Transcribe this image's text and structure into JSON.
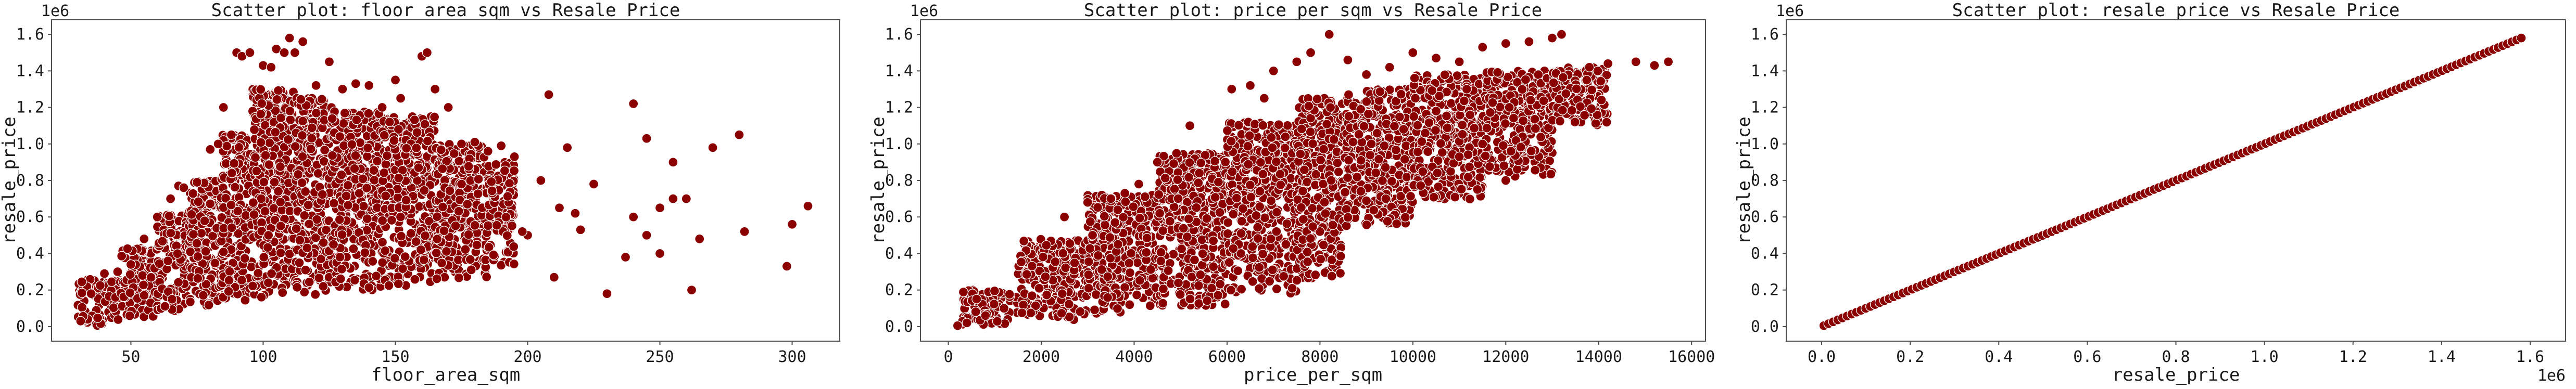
{
  "colors": {
    "marker_fill": "#8b0000",
    "marker_edge": "#ffffff",
    "frame": "#4d4d4d",
    "text": "#1a1a1a"
  },
  "chart_data": [
    {
      "type": "scatter",
      "title": "Scatter plot: floor_area_sqm vs Resale Price",
      "xlabel": "floor_area_sqm",
      "ylabel": "resale_price",
      "y_offset_label": "1e6",
      "x_offset_label": "",
      "xlim": [
        20,
        318
      ],
      "ylim": [
        -80000,
        1680000
      ],
      "xticks": [
        50,
        100,
        150,
        200,
        250,
        300
      ],
      "xtick_labels": [
        "50",
        "100",
        "150",
        "200",
        "250",
        "300"
      ],
      "yticks": [
        0,
        200000,
        400000,
        600000,
        800000,
        1000000,
        1200000,
        1400000,
        1600000
      ],
      "ytick_labels": [
        "0.0",
        "0.2",
        "0.4",
        "0.6",
        "0.8",
        "1.0",
        "1.2",
        "1.4",
        "1.6"
      ],
      "grid": false,
      "points": [
        [
          31,
          30000
        ],
        [
          35,
          180000
        ],
        [
          40,
          290000
        ],
        [
          45,
          300000
        ],
        [
          50,
          340000
        ],
        [
          55,
          480000
        ],
        [
          60,
          600000
        ],
        [
          65,
          700000
        ],
        [
          68,
          770000
        ],
        [
          70,
          760000
        ],
        [
          75,
          790000
        ],
        [
          80,
          970000
        ],
        [
          83,
          1000000
        ],
        [
          85,
          1200000
        ],
        [
          88,
          1050000
        ],
        [
          90,
          1500000
        ],
        [
          92,
          1480000
        ],
        [
          95,
          1500000
        ],
        [
          100,
          1430000
        ],
        [
          103,
          1420000
        ],
        [
          105,
          1520000
        ],
        [
          108,
          1500000
        ],
        [
          110,
          1580000
        ],
        [
          112,
          1500000
        ],
        [
          115,
          1560000
        ],
        [
          120,
          1320000
        ],
        [
          125,
          1450000
        ],
        [
          130,
          1300000
        ],
        [
          135,
          1330000
        ],
        [
          140,
          1320000
        ],
        [
          145,
          1200000
        ],
        [
          150,
          1350000
        ],
        [
          152,
          1250000
        ],
        [
          160,
          1480000
        ],
        [
          162,
          1500000
        ],
        [
          165,
          1300000
        ],
        [
          170,
          1200000
        ],
        [
          175,
          1000000
        ],
        [
          180,
          1010000
        ],
        [
          185,
          960000
        ],
        [
          190,
          990000
        ],
        [
          195,
          930000
        ],
        [
          200,
          500000
        ],
        [
          205,
          800000
        ],
        [
          208,
          1270000
        ],
        [
          210,
          270000
        ],
        [
          215,
          980000
        ],
        [
          220,
          530000
        ],
        [
          225,
          780000
        ],
        [
          240,
          1220000
        ],
        [
          245,
          1030000
        ],
        [
          250,
          650000
        ],
        [
          255,
          900000
        ],
        [
          260,
          700000
        ],
        [
          265,
          480000
        ],
        [
          270,
          980000
        ],
        [
          280,
          1050000
        ],
        [
          282,
          520000
        ],
        [
          298,
          330000
        ],
        [
          300,
          560000
        ],
        [
          306,
          660000
        ],
        [
          240,
          600000
        ],
        [
          237,
          380000
        ],
        [
          230,
          180000
        ],
        [
          198,
          520000
        ],
        [
          212,
          650000
        ],
        [
          218,
          620000
        ],
        [
          255,
          700000
        ],
        [
          262,
          200000
        ],
        [
          245,
          500000
        ],
        [
          250,
          400000
        ]
      ],
      "bands": [
        {
          "x0": 30,
          "x1": 46,
          "ylo": 5000,
          "yhi": 260000
        },
        {
          "x0": 46,
          "x1": 60,
          "ylo": 40000,
          "yhi": 430000
        },
        {
          "x0": 60,
          "x1": 72,
          "ylo": 80000,
          "yhi": 620000
        },
        {
          "x0": 72,
          "x1": 84,
          "ylo": 110000,
          "yhi": 800000
        },
        {
          "x0": 84,
          "x1": 96,
          "ylo": 130000,
          "yhi": 1050000
        },
        {
          "x0": 96,
          "x1": 112,
          "ylo": 150000,
          "yhi": 1300000
        },
        {
          "x0": 112,
          "x1": 126,
          "ylo": 170000,
          "yhi": 1250000
        },
        {
          "x0": 126,
          "x1": 145,
          "ylo": 200000,
          "yhi": 1180000
        },
        {
          "x0": 145,
          "x1": 165,
          "ylo": 220000,
          "yhi": 1150000
        },
        {
          "x0": 165,
          "x1": 185,
          "ylo": 260000,
          "yhi": 1000000
        },
        {
          "x0": 185,
          "x1": 195,
          "ylo": 330000,
          "yhi": 900000
        }
      ]
    },
    {
      "type": "scatter",
      "title": "Scatter plot: price_per_sqm vs Resale Price",
      "xlabel": "price_per_sqm",
      "ylabel": "resale_price",
      "y_offset_label": "1e6",
      "x_offset_label": "",
      "xlim": [
        -600,
        16300
      ],
      "ylim": [
        -80000,
        1680000
      ],
      "xticks": [
        0,
        2000,
        4000,
        6000,
        8000,
        10000,
        12000,
        14000,
        16000
      ],
      "xtick_labels": [
        "0",
        "2000",
        "4000",
        "6000",
        "8000",
        "10000",
        "12000",
        "14000",
        "16000"
      ],
      "yticks": [
        0,
        200000,
        400000,
        600000,
        800000,
        1000000,
        1200000,
        1400000,
        1600000
      ],
      "ytick_labels": [
        "0.0",
        "0.2",
        "0.4",
        "0.6",
        "0.8",
        "1.0",
        "1.2",
        "1.4",
        "1.6"
      ],
      "grid": false,
      "points": [
        [
          200,
          5000
        ],
        [
          400,
          20000
        ],
        [
          800,
          60000
        ],
        [
          1200,
          100000
        ],
        [
          3500,
          700000
        ],
        [
          3800,
          730000
        ],
        [
          4100,
          780000
        ],
        [
          4500,
          900000
        ],
        [
          5200,
          1100000
        ],
        [
          6100,
          1300000
        ],
        [
          6500,
          1320000
        ],
        [
          7000,
          1400000
        ],
        [
          7500,
          1450000
        ],
        [
          7800,
          1500000
        ],
        [
          8200,
          1600000
        ],
        [
          8600,
          1460000
        ],
        [
          9000,
          1380000
        ],
        [
          9500,
          1420000
        ],
        [
          10000,
          1500000
        ],
        [
          10500,
          1470000
        ],
        [
          11000,
          1450000
        ],
        [
          11500,
          1530000
        ],
        [
          12000,
          1550000
        ],
        [
          12500,
          1560000
        ],
        [
          13000,
          1580000
        ],
        [
          13200,
          1600000
        ],
        [
          13800,
          1420000
        ],
        [
          14200,
          1440000
        ],
        [
          14800,
          1450000
        ],
        [
          15500,
          1450000
        ],
        [
          15200,
          1430000
        ],
        [
          11000,
          930000
        ],
        [
          11500,
          1000000
        ],
        [
          12000,
          800000
        ],
        [
          10500,
          1180000
        ],
        [
          9800,
          1080000
        ],
        [
          2500,
          600000
        ],
        [
          3000,
          680000
        ],
        [
          6800,
          1250000
        ]
      ],
      "bands": [
        {
          "x0": 300,
          "x1": 1500,
          "ylo": 10000,
          "yhi": 200000
        },
        {
          "x0": 1500,
          "x1": 3000,
          "ylo": 30000,
          "yhi": 480000
        },
        {
          "x0": 3000,
          "x1": 4500,
          "ylo": 70000,
          "yhi": 720000
        },
        {
          "x0": 4500,
          "x1": 6000,
          "ylo": 110000,
          "yhi": 950000
        },
        {
          "x0": 6000,
          "x1": 7500,
          "ylo": 180000,
          "yhi": 1120000
        },
        {
          "x0": 7500,
          "x1": 8500,
          "ylo": 250000,
          "yhi": 1250000
        },
        {
          "x0": 8500,
          "x1": 10000,
          "ylo": 550000,
          "yhi": 1300000
        },
        {
          "x0": 10000,
          "x1": 11500,
          "ylo": 680000,
          "yhi": 1380000
        },
        {
          "x0": 11500,
          "x1": 13000,
          "ylo": 820000,
          "yhi": 1400000
        },
        {
          "x0": 13000,
          "x1": 14200,
          "ylo": 1100000,
          "yhi": 1420000
        }
      ]
    },
    {
      "type": "scatter",
      "title": "Scatter plot: resale_price vs Resale Price",
      "xlabel": "resale_price",
      "ylabel": "resale_price",
      "y_offset_label": "1e6",
      "x_offset_label": "1e6",
      "xlim": [
        -80000,
        1680000
      ],
      "ylim": [
        -80000,
        1680000
      ],
      "xticks": [
        0,
        200000,
        400000,
        600000,
        800000,
        1000000,
        1200000,
        1400000,
        1600000
      ],
      "xtick_labels": [
        "0.0",
        "0.2",
        "0.4",
        "0.6",
        "0.8",
        "1.0",
        "1.2",
        "1.4",
        "1.6"
      ],
      "yticks": [
        0,
        200000,
        400000,
        600000,
        800000,
        1000000,
        1200000,
        1400000,
        1600000
      ],
      "ytick_labels": [
        "0.0",
        "0.2",
        "0.4",
        "0.6",
        "0.8",
        "1.0",
        "1.2",
        "1.4",
        "1.6"
      ],
      "grid": false,
      "diagonal": {
        "from": 5000,
        "to": 1580000
      },
      "points": [],
      "bands": []
    }
  ]
}
